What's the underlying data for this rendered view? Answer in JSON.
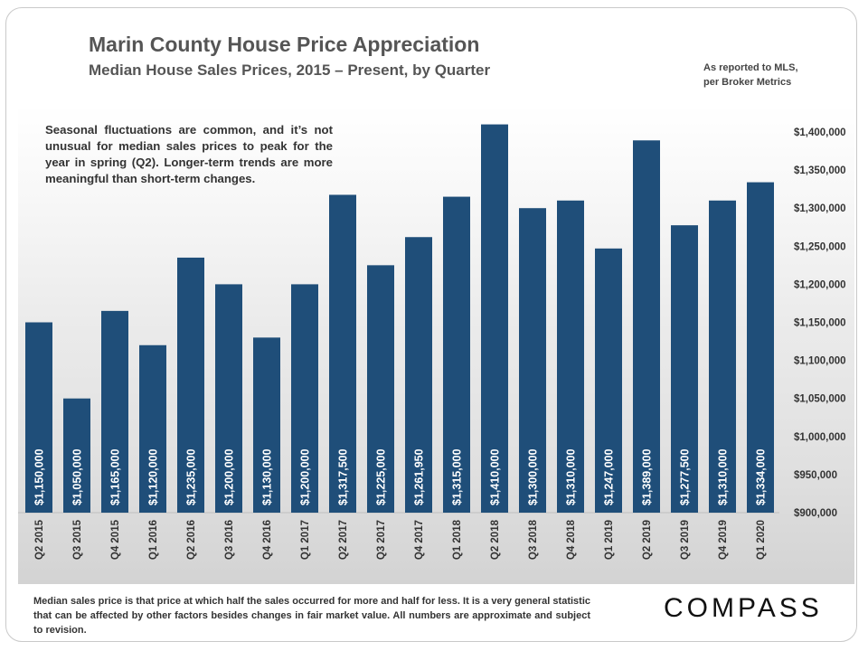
{
  "header": {
    "title": "Marin County House Price Appreciation",
    "subtitle": "Median House Sales Prices, 2015 – Present, by Quarter",
    "source_line1": "As reported to MLS,",
    "source_line2": "per Broker Metrics"
  },
  "note": "Seasonal fluctuations are common, and it’s not unusual for median sales prices to peak for the year in spring (Q2). Longer-term trends are more meaningful than short-term changes.",
  "footnote": "Median sales price is that price at which half the sales occurred for more and half for less. It is a very general statistic that can be affected by other factors besides changes in fair market value. All numbers are approximate and subject to revision.",
  "brand": "COMPASS",
  "colors": {
    "bar": "#1f4e79",
    "label": "#ffffff",
    "axis_text": "#333333"
  },
  "chart_data": {
    "type": "bar",
    "categories": [
      "Q2 2015",
      "Q3 2015",
      "Q4 2015",
      "Q1 2016",
      "Q2 2016",
      "Q3 2016",
      "Q4 2016",
      "Q1 2017",
      "Q2 2017",
      "Q3 2017",
      "Q4 2017",
      "Q1 2018",
      "Q2 2018",
      "Q3 2018",
      "Q4 2018",
      "Q1 2019",
      "Q2 2019",
      "Q3 2019",
      "Q4 2019",
      "Q1 2020"
    ],
    "values": [
      1150000,
      1050000,
      1165000,
      1120000,
      1235000,
      1200000,
      1130000,
      1200000,
      1317500,
      1225000,
      1261950,
      1315000,
      1410000,
      1300000,
      1310000,
      1247000,
      1389000,
      1277500,
      1310000,
      1334000
    ],
    "data_labels": [
      "$1,150,000",
      "$1,050,000",
      "$1,165,000",
      "$1,120,000",
      "$1,235,000",
      "$1,200,000",
      "$1,130,000",
      "$1,200,000",
      "$1,317,500",
      "$1,225,000",
      "$1,261,950",
      "$1,315,000",
      "$1,410,000",
      "$1,300,000",
      "$1,310,000",
      "$1,247,000",
      "$1,389,000",
      "$1,277,500",
      "$1,310,000",
      "$1,334,000"
    ],
    "y_ticks": [
      "$900,000",
      "$950,000",
      "$1,000,000",
      "$1,050,000",
      "$1,100,000",
      "$1,150,000",
      "$1,200,000",
      "$1,250,000",
      "$1,300,000",
      "$1,350,000",
      "$1,400,000"
    ],
    "ylim": [
      900000,
      1400000
    ],
    "y_axis_side": "right",
    "grid": false,
    "title": "Marin County House Price Appreciation"
  }
}
